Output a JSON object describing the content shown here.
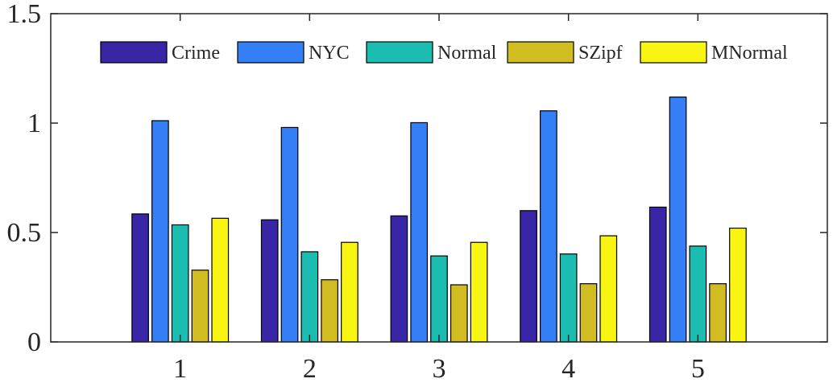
{
  "chart_data": {
    "type": "bar",
    "title": "",
    "xlabel": "",
    "ylabel": "",
    "categories": [
      "1",
      "2",
      "3",
      "4",
      "5"
    ],
    "ylim": [
      0,
      1.5
    ],
    "yticks": [
      "0",
      "0.5",
      "1",
      "1.5"
    ],
    "grid": false,
    "legend_position": "top",
    "series": [
      {
        "name": "Crime",
        "color": "#3826A6",
        "values": [
          0.585,
          0.558,
          0.576,
          0.6,
          0.616
        ]
      },
      {
        "name": "NYC",
        "color": "#347FF5",
        "values": [
          1.011,
          0.98,
          1.002,
          1.056,
          1.119
        ]
      },
      {
        "name": "Normal",
        "color": "#1ABDB0",
        "values": [
          0.535,
          0.412,
          0.393,
          0.402,
          0.438
        ]
      },
      {
        "name": "SZipf",
        "color": "#D1BC22",
        "values": [
          0.328,
          0.284,
          0.261,
          0.266,
          0.266
        ]
      },
      {
        "name": "MNormal",
        "color": "#F9F512",
        "values": [
          0.565,
          0.455,
          0.455,
          0.485,
          0.52
        ]
      }
    ]
  }
}
